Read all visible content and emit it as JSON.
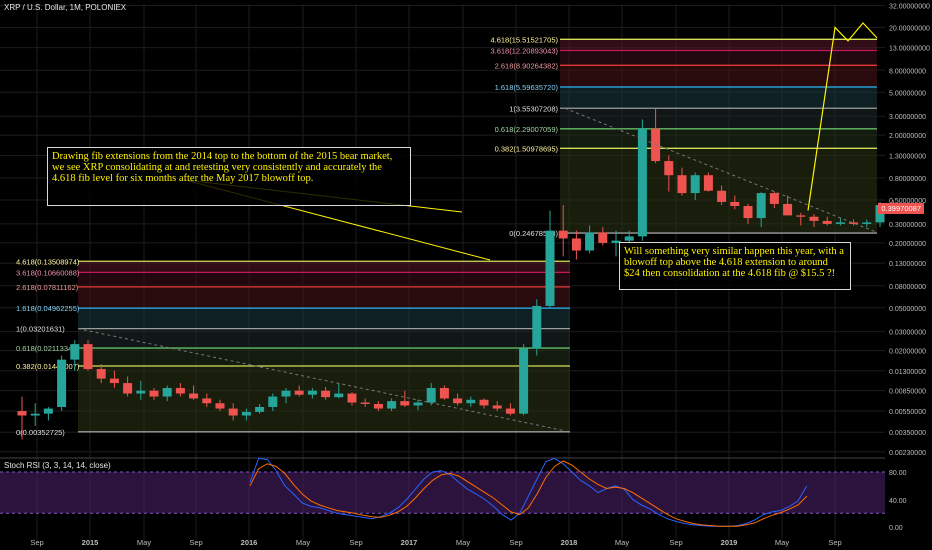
{
  "header": {
    "title": "XRP / U.S. Dollar, 1M, POLONIEX"
  },
  "indicator": {
    "title": "Stoch RSI (3, 3, 14, 14, close)"
  },
  "annotations": {
    "note1": "Drawing fib extensions from the 2014 top to the bottom of the 2015 bear market, we see XRP consolidating at and retesting very consistently and accurately the 4.618 fib level for six months after the May 2017 blowoff top.",
    "note2": "Will something very similar happen this year, with a blowoff top above the 4.618 extension to around $24 then consolidation at the 4.618 fib @ $15.5 ?!"
  },
  "price_badge": "0.39970087",
  "colors": {
    "up": "#26a69a",
    "down": "#ef5350",
    "background": "#000000",
    "note_text": "#fff200",
    "stoch_k": "#2962ff",
    "stoch_d": "#ff6d00",
    "indicator_band": "#4a1f66"
  },
  "chart_data": [
    {
      "type": "candlestick",
      "scale": "log",
      "ylim": [
        0.00215,
        33
      ],
      "x_ticks": [
        "Sep",
        "2015",
        "May",
        "Sep",
        "2016",
        "May",
        "Sep",
        "2017",
        "May",
        "Sep",
        "2018",
        "May",
        "Sep",
        "2019",
        "May",
        "Sep"
      ],
      "y_ticks": [
        "32.00000000",
        "20.00000000",
        "13.00000000",
        "8.00000000",
        "5.00000000",
        "3.00000000",
        "2.00000000",
        "1.30000000",
        "0.80000000",
        "0.50000000",
        "0.30000000",
        "0.20000000",
        "0.13000000",
        "0.08000000",
        "0.05000000",
        "0.03000000",
        "0.02000000",
        "0.01300000",
        "0.00850000",
        "0.00550000",
        "0.00350000",
        "0.00230000"
      ],
      "candles": [
        [
          0.0055,
          0.0075,
          0.003,
          0.005
        ],
        [
          0.005,
          0.0065,
          0.004,
          0.0052
        ],
        [
          0.0052,
          0.006,
          0.0045,
          0.0058
        ],
        [
          0.006,
          0.018,
          0.0055,
          0.0165
        ],
        [
          0.0165,
          0.025,
          0.013,
          0.023
        ],
        [
          0.023,
          0.025,
          0.013,
          0.0135
        ],
        [
          0.0135,
          0.015,
          0.01,
          0.011
        ],
        [
          0.011,
          0.013,
          0.009,
          0.01
        ],
        [
          0.01,
          0.0115,
          0.0075,
          0.008
        ],
        [
          0.008,
          0.0105,
          0.007,
          0.0085
        ],
        [
          0.0085,
          0.009,
          0.007,
          0.0075
        ],
        [
          0.0075,
          0.0095,
          0.0068,
          0.009
        ],
        [
          0.009,
          0.01,
          0.0075,
          0.008
        ],
        [
          0.008,
          0.0095,
          0.007,
          0.0072
        ],
        [
          0.0072,
          0.008,
          0.006,
          0.0065
        ],
        [
          0.0065,
          0.007,
          0.0055,
          0.0058
        ],
        [
          0.0058,
          0.0065,
          0.0045,
          0.005
        ],
        [
          0.005,
          0.0058,
          0.0045,
          0.0054
        ],
        [
          0.0054,
          0.0064,
          0.0052,
          0.006
        ],
        [
          0.006,
          0.008,
          0.0055,
          0.0075
        ],
        [
          0.0075,
          0.009,
          0.0065,
          0.0085
        ],
        [
          0.0085,
          0.0095,
          0.0075,
          0.0078
        ],
        [
          0.0078,
          0.009,
          0.0072,
          0.0085
        ],
        [
          0.0085,
          0.0092,
          0.007,
          0.0074
        ],
        [
          0.0074,
          0.01,
          0.0072,
          0.008
        ],
        [
          0.008,
          0.0082,
          0.0062,
          0.0066
        ],
        [
          0.0066,
          0.0072,
          0.006,
          0.0064
        ],
        [
          0.0064,
          0.0068,
          0.0055,
          0.0058
        ],
        [
          0.0058,
          0.0072,
          0.0055,
          0.0068
        ],
        [
          0.0068,
          0.0085,
          0.006,
          0.0062
        ],
        [
          0.0062,
          0.007,
          0.0056,
          0.0066
        ],
        [
          0.0066,
          0.01,
          0.0062,
          0.009
        ],
        [
          0.009,
          0.0095,
          0.007,
          0.0072
        ],
        [
          0.0072,
          0.008,
          0.0062,
          0.0065
        ],
        [
          0.0065,
          0.0075,
          0.006,
          0.007
        ],
        [
          0.007,
          0.0072,
          0.0058,
          0.0062
        ],
        [
          0.0062,
          0.0068,
          0.0055,
          0.0058
        ],
        [
          0.0058,
          0.0065,
          0.005,
          0.0052
        ],
        [
          0.0052,
          0.023,
          0.005,
          0.021
        ],
        [
          0.021,
          0.06,
          0.018,
          0.052
        ],
        [
          0.052,
          0.4,
          0.05,
          0.26
        ],
        [
          0.26,
          0.45,
          0.15,
          0.22
        ],
        [
          0.22,
          0.26,
          0.14,
          0.17
        ],
        [
          0.17,
          0.29,
          0.16,
          0.25
        ],
        [
          0.25,
          0.28,
          0.19,
          0.2
        ],
        [
          0.2,
          0.26,
          0.15,
          0.21
        ],
        [
          0.21,
          0.26,
          0.19,
          0.23
        ],
        [
          0.23,
          2.8,
          0.21,
          2.3
        ],
        [
          2.3,
          3.55,
          1.1,
          1.15
        ],
        [
          1.15,
          1.3,
          0.6,
          0.85
        ],
        [
          0.85,
          1.0,
          0.55,
          0.58
        ],
        [
          0.58,
          0.9,
          0.5,
          0.85
        ],
        [
          0.85,
          0.9,
          0.6,
          0.61
        ],
        [
          0.61,
          0.68,
          0.45,
          0.48
        ],
        [
          0.48,
          0.55,
          0.41,
          0.44
        ],
        [
          0.44,
          0.46,
          0.3,
          0.34
        ],
        [
          0.34,
          0.59,
          0.28,
          0.58
        ],
        [
          0.58,
          0.6,
          0.42,
          0.46
        ],
        [
          0.46,
          0.55,
          0.38,
          0.36
        ],
        [
          0.36,
          0.38,
          0.29,
          0.35
        ],
        [
          0.35,
          0.37,
          0.28,
          0.32
        ],
        [
          0.32,
          0.35,
          0.29,
          0.3
        ],
        [
          0.3,
          0.34,
          0.29,
          0.31
        ],
        [
          0.31,
          0.33,
          0.29,
          0.3
        ],
        [
          0.3,
          0.33,
          0.28,
          0.31
        ],
        [
          0.31,
          0.48,
          0.28,
          0.45
        ],
        [
          0.45,
          0.5,
          0.38,
          0.4
        ]
      ],
      "fib_2014_2015": [
        {
          "label": "4.618(0.13508974)",
          "value": 0.13508974
        },
        {
          "label": "3.618(0.10660088)",
          "value": 0.10660088
        },
        {
          "label": "2.618(0.07811162)",
          "value": 0.07811162
        },
        {
          "label": "1.618(0.04962255)",
          "value": 0.04962255
        },
        {
          "label": "1(0.03201631)",
          "value": 0.03201631
        },
        {
          "label": "0.618(0.02113349)",
          "value": 0.02113349
        },
        {
          "label": "0.382(0.01441007)",
          "value": 0.01441007
        },
        {
          "label": "0(0.00352725)",
          "value": 0.00352725
        }
      ],
      "fib_2018_2019": [
        {
          "label": "4.618(15.51521705)",
          "value": 15.51521705
        },
        {
          "label": "3.618(12.20893043)",
          "value": 12.20893043
        },
        {
          "label": "2.618(8.90264382)",
          "value": 8.90264382
        },
        {
          "label": "1.618(5.59635720)",
          "value": 5.5963572
        },
        {
          "label": "1(3.55307208)",
          "value": 3.55307208
        },
        {
          "label": "0.618(2.29007059)",
          "value": 2.29007059
        },
        {
          "label": "0.382(1.50978695)",
          "value": 1.50978695
        },
        {
          "label": "0(0.24678548)",
          "value": 0.24678548
        }
      ]
    },
    {
      "type": "line",
      "ylim": [
        0,
        100
      ],
      "y_ticks": [
        "80.00",
        "40.00",
        "0.00"
      ],
      "series": [
        {
          "name": "K",
          "values": [
            65,
            100,
            98,
            82,
            60,
            48,
            35,
            30,
            28,
            24,
            20,
            18,
            16,
            14,
            12,
            15,
            20,
            28,
            40,
            55,
            70,
            80,
            82,
            76,
            65,
            55,
            48,
            40,
            30,
            18,
            10,
            20,
            45,
            70,
            95,
            100,
            92,
            80,
            68,
            60,
            50,
            56,
            60,
            55,
            40,
            32,
            26,
            18,
            12,
            8,
            5,
            3,
            2,
            1,
            1,
            1,
            2,
            5,
            10,
            18,
            22,
            24,
            30,
            38,
            60
          ]
        },
        {
          "name": "D",
          "values": [
            60,
            85,
            92,
            88,
            78,
            62,
            48,
            38,
            32,
            28,
            24,
            22,
            20,
            17,
            15,
            14,
            17,
            22,
            30,
            42,
            56,
            68,
            76,
            78,
            74,
            66,
            58,
            50,
            42,
            32,
            22,
            18,
            28,
            48,
            72,
            88,
            96,
            90,
            80,
            70,
            62,
            56,
            58,
            56,
            50,
            42,
            34,
            26,
            18,
            12,
            8,
            5,
            3,
            2,
            1,
            1,
            1,
            3,
            6,
            12,
            17,
            21,
            26,
            32,
            45
          ]
        }
      ]
    }
  ]
}
